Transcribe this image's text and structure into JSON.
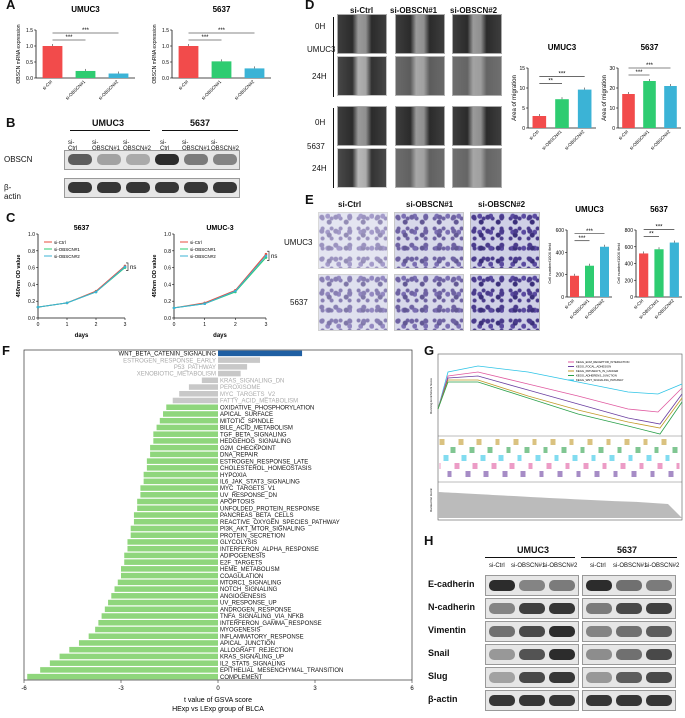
{
  "panels": {
    "A": "A",
    "B": "B",
    "C": "C",
    "D": "D",
    "E": "E",
    "F": "F",
    "G": "G",
    "H": "H"
  },
  "panelA": {
    "chart_data": [
      {
        "type": "bar",
        "title": "UMUC3",
        "ylabel": "OBSCN mRNA expression",
        "categories": [
          "si-Ctrl",
          "si-OBSCN#1",
          "si-OBSCN#2"
        ],
        "values": [
          1.0,
          0.22,
          0.14
        ],
        "ylim": [
          0,
          1.5
        ],
        "ticks": [
          "0.0",
          "0.5",
          "1.0",
          "1.5"
        ],
        "colors": [
          "#f24b4b",
          "#2ecc71",
          "#3bb3d6"
        ],
        "sig": [
          "***",
          "***"
        ]
      },
      {
        "type": "bar",
        "title": "5637",
        "ylabel": "OBSCN mRNA expression",
        "categories": [
          "si-Ctrl",
          "si-OBSCN#1",
          "si-OBSCN#2"
        ],
        "values": [
          1.0,
          0.52,
          0.3
        ],
        "ylim": [
          0,
          1.5
        ],
        "ticks": [
          "0.0",
          "0.5",
          "1.0",
          "1.5"
        ],
        "colors": [
          "#f24b4b",
          "#2ecc71",
          "#3bb3d6"
        ],
        "sig": [
          "***",
          "***"
        ]
      }
    ]
  },
  "panelB": {
    "groups": [
      "UMUC3",
      "5637"
    ],
    "lanes": [
      "si-Ctrl",
      "si-OBSCN#1",
      "si-OBSCN#2",
      "si-Ctrl",
      "si-OBSCN#1",
      "si-OBSCN#2"
    ],
    "rows": [
      "OBSCN",
      "β-actin"
    ]
  },
  "panelC": {
    "chart_data": [
      {
        "type": "line",
        "title": "5637",
        "xlabel": "days",
        "ylabel": "450nm OD value",
        "x": [
          0,
          1,
          2,
          3
        ],
        "ylim": [
          0,
          1.0
        ],
        "yticks": [
          "0.0",
          "0.2",
          "0.4",
          "0.6",
          "0.8",
          "1.0"
        ],
        "series": [
          {
            "name": "si-Ctrl",
            "values": [
              0.13,
              0.18,
              0.32,
              0.62
            ],
            "color": "#e74c3c"
          },
          {
            "name": "si-OBSCN#1",
            "values": [
              0.13,
              0.18,
              0.31,
              0.6
            ],
            "color": "#2ecc71"
          },
          {
            "name": "si-OBSCN#2",
            "values": [
              0.13,
              0.18,
              0.31,
              0.61
            ],
            "color": "#3bb3d6"
          }
        ],
        "sig": "ns"
      },
      {
        "type": "line",
        "title": "UMUC-3",
        "xlabel": "days",
        "ylabel": "450nm OD value",
        "x": [
          0,
          1,
          2,
          3
        ],
        "ylim": [
          0,
          1.0
        ],
        "yticks": [
          "0.0",
          "0.2",
          "0.4",
          "0.6",
          "0.8",
          "1.0"
        ],
        "series": [
          {
            "name": "si-Ctrl",
            "values": [
              0.12,
              0.18,
              0.33,
              0.76
            ],
            "color": "#e74c3c"
          },
          {
            "name": "si-OBSCN#1",
            "values": [
              0.12,
              0.17,
              0.31,
              0.72
            ],
            "color": "#2ecc71"
          },
          {
            "name": "si-OBSCN#2",
            "values": [
              0.12,
              0.17,
              0.32,
              0.74
            ],
            "color": "#3bb3d6"
          }
        ],
        "sig": "ns"
      }
    ]
  },
  "panelD": {
    "columns": [
      "si-Ctrl",
      "si-OBSCN#1",
      "si-OBSCN#2"
    ],
    "cells": [
      "UMUC3",
      "5637"
    ],
    "times": [
      "0H",
      "24H"
    ],
    "chart_data": [
      {
        "type": "bar",
        "title": "UMUC3",
        "ylabel": "Area of migration",
        "categories": [
          "si-Ctrl",
          "si-OBSCN#1",
          "si-OBSCN#2"
        ],
        "values": [
          3,
          7.2,
          9.6
        ],
        "ylim": [
          0,
          15
        ],
        "ticks": [
          "0",
          "5",
          "10",
          "15"
        ],
        "colors": [
          "#f24b4b",
          "#2ecc71",
          "#3bb3d6"
        ],
        "sig": [
          "***",
          "**"
        ]
      },
      {
        "type": "bar",
        "title": "5637",
        "ylabel": "Area of migration",
        "categories": [
          "si-Ctrl",
          "si-OBSCN#1",
          "si-OBSCN#2"
        ],
        "values": [
          17,
          23.5,
          21
        ],
        "ylim": [
          0,
          30
        ],
        "ticks": [
          "0",
          "10",
          "20",
          "30"
        ],
        "colors": [
          "#f24b4b",
          "#2ecc71",
          "#3bb3d6"
        ],
        "sig": [
          "***",
          "***"
        ]
      }
    ]
  },
  "panelE": {
    "columns": [
      "si-Ctrl",
      "si-OBSCN#1",
      "si-OBSCN#2"
    ],
    "cells": [
      "UMUC3",
      "5637"
    ],
    "chart_data": [
      {
        "type": "bar",
        "title": "UMUC3",
        "ylabel": "Cell number/100X field",
        "categories": [
          "si-Ctrl",
          "si-OBSCN#1",
          "si-OBSCN#2"
        ],
        "values": [
          190,
          280,
          450
        ],
        "ylim": [
          0,
          600
        ],
        "ticks": [
          "0",
          "200",
          "400",
          "600"
        ],
        "colors": [
          "#f24b4b",
          "#2ecc71",
          "#3bb3d6"
        ],
        "sig": [
          "***",
          "***"
        ]
      },
      {
        "type": "bar",
        "title": "5637",
        "ylabel": "Cell number/100X field",
        "categories": [
          "si-Ctrl",
          "si-OBSCN#1",
          "si-OBSCN#2"
        ],
        "values": [
          520,
          570,
          650
        ],
        "ylim": [
          0,
          800
        ],
        "ticks": [
          "0",
          "200",
          "400",
          "600",
          "800"
        ],
        "colors": [
          "#f24b4b",
          "#2ecc71",
          "#3bb3d6"
        ],
        "sig": [
          "***",
          "**"
        ]
      }
    ]
  },
  "panelF": {
    "chart_data": {
      "type": "bar",
      "orientation": "horizontal",
      "xlabel": "t value of GSVA score",
      "xlabel2": "HExp vs LExp group of BLCA",
      "xlim": [
        -6,
        6
      ],
      "xticks": [
        "-6",
        "-3",
        "0",
        "3",
        "6"
      ],
      "categories": [
        "WNT_BETA_CATENIN_SIGNALING",
        "ESTROGEN_RESPONSE_EARLY",
        "P53_PATHWAY",
        "XENOBIOTIC_METABOLISM",
        "KRAS_SIGNALING_DN",
        "PEROXISOME",
        "MYC_TARGETS_V2",
        "FATTY_ACID_METABOLISM",
        "OXIDATIVE_PHOSPHORYLATION",
        "APICAL_SURFACE",
        "MITOTIC_SPINDLE",
        "BILE_ACID_METABOLISM",
        "TGF_BETA_SIGNALING",
        "HEDGEHOG_SIGNALING",
        "G2M_CHECKPOINT",
        "DNA_REPAIR",
        "ESTROGEN_RESPONSE_LATE",
        "CHOLESTEROL_HOMEOSTASIS",
        "HYPOXIA",
        "IL6_JAK_STAT3_SIGNALING",
        "MYC_TARGETS_V1",
        "UV_RESPONSE_DN",
        "APOPTOSIS",
        "UNFOLDED_PROTEIN_RESPONSE",
        "PANCREAS_BETA_CELLS",
        "REACTIVE_OXYGEN_SPECIES_PATHWAY",
        "PI3K_AKT_MTOR_SIGNALING",
        "PROTEIN_SECRETION",
        "GLYCOLYSIS",
        "INTERFERON_ALPHA_RESPONSE",
        "ADIPOGENESIS",
        "E2F_TARGETS",
        "HEME_METABOLISM",
        "COAGULATION",
        "MTORC1_SIGNALING",
        "NOTCH_SIGNALING",
        "ANGIOGENESIS",
        "UV_RESPONSE_UP",
        "ANDROGEN_RESPONSE",
        "TNFA_SIGNALING_VIA_NFKB",
        "INTERFERON_GAMMA_RESPONSE",
        "MYOGENESIS",
        "INFLAMMATORY_RESPONSE",
        "APICAL_JUNCTION",
        "ALLOGRAFT_REJECTION",
        "KRAS_SIGNALING_UP",
        "IL2_STAT5_SIGNALING",
        "EPITHELIAL_MESENCHYMAL_TRANSITION",
        "COMPLEMENT"
      ],
      "values": [
        2.6,
        1.3,
        0.9,
        0.7,
        -0.5,
        -0.9,
        -1.2,
        -1.4,
        -1.6,
        -1.7,
        -1.8,
        -1.9,
        -2.0,
        -2.0,
        -2.1,
        -2.1,
        -2.2,
        -2.2,
        -2.3,
        -2.3,
        -2.4,
        -2.4,
        -2.5,
        -2.5,
        -2.6,
        -2.6,
        -2.7,
        -2.7,
        -2.8,
        -2.8,
        -2.9,
        -2.9,
        -3.0,
        -3.0,
        -3.1,
        -3.2,
        -3.3,
        -3.4,
        -3.5,
        -3.6,
        -3.7,
        -3.8,
        -4.0,
        -4.3,
        -4.6,
        -4.9,
        -5.2,
        -5.5,
        -5.9
      ],
      "significant": [
        true,
        false,
        false,
        false,
        false,
        false,
        false,
        false,
        true,
        true,
        true,
        true,
        true,
        true,
        true,
        true,
        true,
        true,
        true,
        true,
        true,
        true,
        true,
        true,
        true,
        true,
        true,
        true,
        true,
        true,
        true,
        true,
        true,
        true,
        true,
        true,
        true,
        true,
        true,
        true,
        true,
        true,
        true,
        true,
        true,
        true,
        true,
        true,
        true
      ],
      "colors": {
        "up": "#1f5fa3",
        "down": "#8fd67c",
        "ns": "#c8c8c8"
      }
    }
  },
  "panelG": {
    "ylabel": "Running Enrichment Score",
    "ylabel2": "Ranked list metric",
    "xlabel": "Rank in Ordered Dataset",
    "legend": [
      "KEGG_ECM_RECEPTOR_INTERACTION",
      "KEGG_FOCAL_ADHESION",
      "KEGG_PATHWAYS_IN_CANCER",
      "KEGG_ADHERENS_JUNCTION",
      "KEGG_WNT_SIGNALING_PATHWAY"
    ],
    "colors": [
      "#e05aa0",
      "#6b3fa0",
      "#c29a2a",
      "#2aa04a",
      "#2ec4e6"
    ]
  },
  "panelH": {
    "groups": [
      "UMUC3",
      "5637"
    ],
    "lanes": [
      "si-Ctrl",
      "si-OBSCN#1",
      "si-OBSCN#2",
      "si-Ctrl",
      "si-OBSCN#1",
      "si-OBSCN#2"
    ],
    "rows": [
      "E-cadherin",
      "N-cadherin",
      "Vimentin",
      "Snail",
      "Slug",
      "β-actin"
    ]
  }
}
